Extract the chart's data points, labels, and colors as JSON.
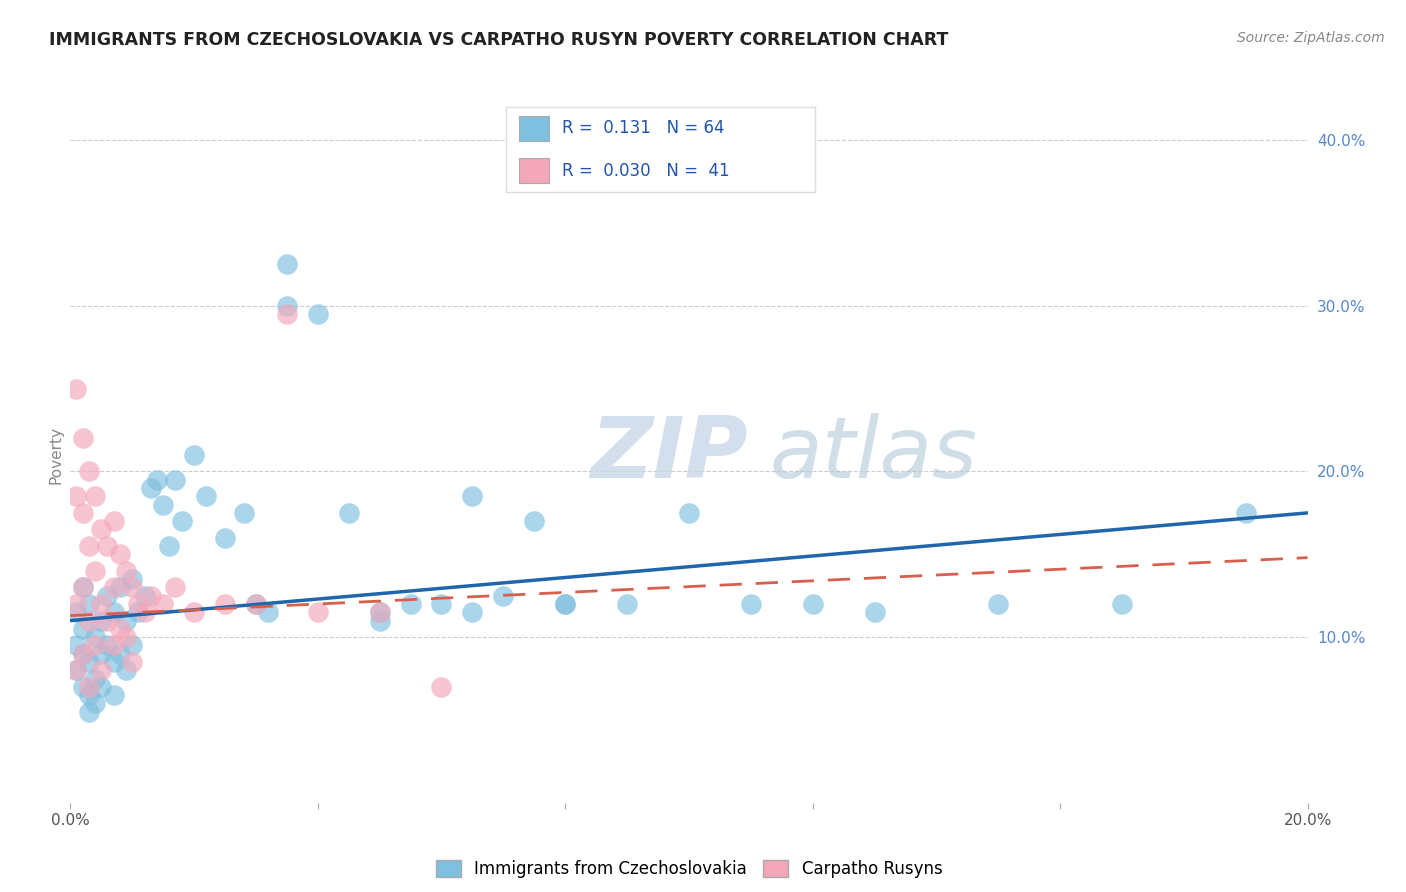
{
  "title": "IMMIGRANTS FROM CZECHOSLOVAKIA VS CARPATHO RUSYN POVERTY CORRELATION CHART",
  "source": "Source: ZipAtlas.com",
  "xlabel_label": "Immigrants from Czechoslovakia",
  "xlabel_label2": "Carpatho Rusyns",
  "ylabel": "Poverty",
  "xlim": [
    0.0,
    0.2
  ],
  "ylim": [
    0.0,
    0.42
  ],
  "xticks": [
    0.0,
    0.04,
    0.08,
    0.12,
    0.16,
    0.2
  ],
  "yticks": [
    0.1,
    0.2,
    0.3,
    0.4
  ],
  "ytick_labels": [
    "10.0%",
    "20.0%",
    "30.0%",
    "40.0%"
  ],
  "xtick_labels": [
    "0.0%",
    "",
    "",
    "",
    "",
    "20.0%"
  ],
  "r_blue": 0.131,
  "n_blue": 64,
  "r_pink": 0.03,
  "n_pink": 41,
  "blue_color": "#7fbfdf",
  "pink_color": "#f4a7b9",
  "line_blue": "#2166ac",
  "line_pink": "#d6604d",
  "watermark_zip": "ZIP",
  "watermark_atlas": "atlas",
  "blue_scatter_x": [
    0.001,
    0.001,
    0.001,
    0.002,
    0.002,
    0.002,
    0.002,
    0.003,
    0.003,
    0.003,
    0.003,
    0.004,
    0.004,
    0.004,
    0.005,
    0.005,
    0.005,
    0.006,
    0.006,
    0.007,
    0.007,
    0.007,
    0.008,
    0.008,
    0.009,
    0.009,
    0.01,
    0.01,
    0.011,
    0.012,
    0.013,
    0.014,
    0.015,
    0.016,
    0.017,
    0.018,
    0.02,
    0.022,
    0.025,
    0.028,
    0.03,
    0.032,
    0.035,
    0.04,
    0.045,
    0.05,
    0.055,
    0.06,
    0.065,
    0.07,
    0.075,
    0.08,
    0.09,
    0.1,
    0.11,
    0.12,
    0.13,
    0.15,
    0.17,
    0.19,
    0.035,
    0.05,
    0.065,
    0.08
  ],
  "blue_scatter_y": [
    0.115,
    0.095,
    0.08,
    0.13,
    0.105,
    0.09,
    0.07,
    0.12,
    0.085,
    0.065,
    0.055,
    0.1,
    0.075,
    0.06,
    0.11,
    0.09,
    0.07,
    0.125,
    0.095,
    0.115,
    0.085,
    0.065,
    0.13,
    0.09,
    0.11,
    0.08,
    0.135,
    0.095,
    0.115,
    0.125,
    0.19,
    0.195,
    0.18,
    0.155,
    0.195,
    0.17,
    0.21,
    0.185,
    0.16,
    0.175,
    0.12,
    0.115,
    0.3,
    0.295,
    0.175,
    0.11,
    0.12,
    0.12,
    0.115,
    0.125,
    0.17,
    0.12,
    0.12,
    0.175,
    0.12,
    0.12,
    0.115,
    0.12,
    0.12,
    0.175,
    0.325,
    0.115,
    0.185,
    0.12
  ],
  "pink_scatter_x": [
    0.001,
    0.001,
    0.001,
    0.001,
    0.002,
    0.002,
    0.002,
    0.002,
    0.003,
    0.003,
    0.003,
    0.003,
    0.004,
    0.004,
    0.004,
    0.005,
    0.005,
    0.005,
    0.006,
    0.006,
    0.007,
    0.007,
    0.007,
    0.008,
    0.008,
    0.009,
    0.009,
    0.01,
    0.01,
    0.011,
    0.012,
    0.013,
    0.015,
    0.017,
    0.02,
    0.025,
    0.03,
    0.035,
    0.04,
    0.05,
    0.06
  ],
  "pink_scatter_y": [
    0.25,
    0.185,
    0.12,
    0.08,
    0.22,
    0.175,
    0.13,
    0.09,
    0.2,
    0.155,
    0.11,
    0.07,
    0.185,
    0.14,
    0.095,
    0.165,
    0.12,
    0.08,
    0.155,
    0.11,
    0.17,
    0.13,
    0.095,
    0.15,
    0.105,
    0.14,
    0.1,
    0.13,
    0.085,
    0.12,
    0.115,
    0.125,
    0.12,
    0.13,
    0.115,
    0.12,
    0.12,
    0.295,
    0.115,
    0.115,
    0.07
  ],
  "blue_line_x0": 0.0,
  "blue_line_x1": 0.2,
  "blue_line_y0": 0.11,
  "blue_line_y1": 0.175,
  "pink_line_x0": 0.0,
  "pink_line_x1": 0.2,
  "pink_line_y0": 0.113,
  "pink_line_y1": 0.148
}
